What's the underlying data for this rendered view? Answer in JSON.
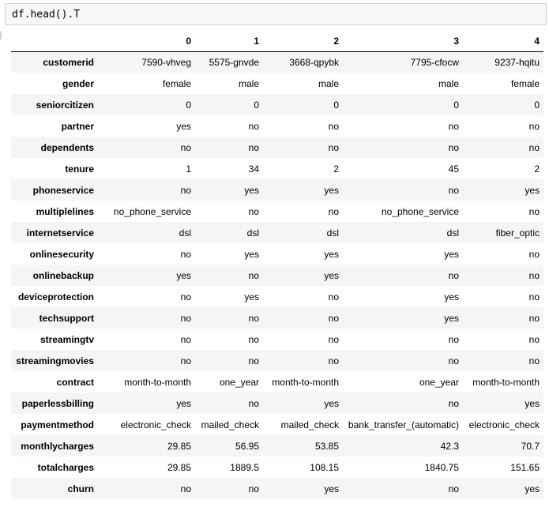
{
  "cell": {
    "code": "df.head().T"
  },
  "table": {
    "columns": [
      "0",
      "1",
      "2",
      "3",
      "4"
    ],
    "rows": [
      {
        "label": "customerid",
        "values": [
          "7590-vhveg",
          "5575-gnvde",
          "3668-qpybk",
          "7795-cfocw",
          "9237-hqitu"
        ]
      },
      {
        "label": "gender",
        "values": [
          "female",
          "male",
          "male",
          "male",
          "female"
        ]
      },
      {
        "label": "seniorcitizen",
        "values": [
          "0",
          "0",
          "0",
          "0",
          "0"
        ]
      },
      {
        "label": "partner",
        "values": [
          "yes",
          "no",
          "no",
          "no",
          "no"
        ]
      },
      {
        "label": "dependents",
        "values": [
          "no",
          "no",
          "no",
          "no",
          "no"
        ]
      },
      {
        "label": "tenure",
        "values": [
          "1",
          "34",
          "2",
          "45",
          "2"
        ]
      },
      {
        "label": "phoneservice",
        "values": [
          "no",
          "yes",
          "yes",
          "no",
          "yes"
        ]
      },
      {
        "label": "multiplelines",
        "values": [
          "no_phone_service",
          "no",
          "no",
          "no_phone_service",
          "no"
        ]
      },
      {
        "label": "internetservice",
        "values": [
          "dsl",
          "dsl",
          "dsl",
          "dsl",
          "fiber_optic"
        ]
      },
      {
        "label": "onlinesecurity",
        "values": [
          "no",
          "yes",
          "yes",
          "yes",
          "no"
        ]
      },
      {
        "label": "onlinebackup",
        "values": [
          "yes",
          "no",
          "yes",
          "no",
          "no"
        ]
      },
      {
        "label": "deviceprotection",
        "values": [
          "no",
          "yes",
          "no",
          "yes",
          "no"
        ]
      },
      {
        "label": "techsupport",
        "values": [
          "no",
          "no",
          "no",
          "yes",
          "no"
        ]
      },
      {
        "label": "streamingtv",
        "values": [
          "no",
          "no",
          "no",
          "no",
          "no"
        ]
      },
      {
        "label": "streamingmovies",
        "values": [
          "no",
          "no",
          "no",
          "no",
          "no"
        ]
      },
      {
        "label": "contract",
        "values": [
          "month-to-month",
          "one_year",
          "month-to-month",
          "one_year",
          "month-to-month"
        ]
      },
      {
        "label": "paperlessbilling",
        "values": [
          "yes",
          "no",
          "yes",
          "no",
          "yes"
        ]
      },
      {
        "label": "paymentmethod",
        "values": [
          "electronic_check",
          "mailed_check",
          "mailed_check",
          "bank_transfer_(automatic)",
          "electronic_check"
        ]
      },
      {
        "label": "monthlycharges",
        "values": [
          "29.85",
          "56.95",
          "53.85",
          "42.3",
          "70.7"
        ]
      },
      {
        "label": "totalcharges",
        "values": [
          "29.85",
          "1889.5",
          "108.15",
          "1840.75",
          "151.65"
        ]
      },
      {
        "label": "churn",
        "values": [
          "no",
          "no",
          "yes",
          "no",
          "yes"
        ]
      }
    ]
  }
}
